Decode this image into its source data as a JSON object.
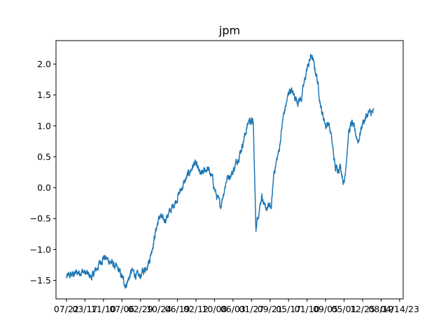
{
  "chart_data": {
    "type": "line",
    "title": "jpm",
    "xlabel": "",
    "ylabel": "",
    "ylim": [
      -1.8,
      2.38
    ],
    "yticks": [
      -1.5,
      -1.0,
      -0.5,
      0.0,
      0.5,
      1.0,
      1.5,
      2.0
    ],
    "ytick_labels": [
      "−1.5",
      "−1.0",
      "−0.5",
      "0.0",
      "0.5",
      "1.0",
      "1.5",
      "2.0"
    ],
    "xticks": [
      "2013-07-22",
      "2014-03-17",
      "2014-11-10",
      "2015-07-06",
      "2016-02-29",
      "2016-10-24",
      "2017-06-19",
      "2018-02-12",
      "2018-10-08",
      "2019-06-03",
      "2020-01-27",
      "2020-09-21",
      "2021-05-17",
      "2022-01-10",
      "2022-09-05",
      "2023-05-01",
      "2023-12-25",
      "2024-08-19",
      "2025-04-14"
    ],
    "xtick_labels": [
      "07/22",
      "03/17",
      "11/10",
      "07/06",
      "02/29",
      "10/24",
      "06/19",
      "02/12",
      "10/08",
      "06/03",
      "01/27",
      "09/21",
      "05/17",
      "01/10",
      "09/05",
      "05/01",
      "12/25",
      "08/19",
      "04/14/23"
    ],
    "xlim": [
      "2013-03-10",
      "2025-05-30"
    ],
    "grid": false,
    "series": [
      {
        "name": "",
        "color": "#1f77b4",
        "x": [
          "2013-07-22",
          "2013-10-20",
          "2014-02-05",
          "2014-06-15",
          "2014-08-20",
          "2014-11-10",
          "2015-02-10",
          "2015-05-30",
          "2015-08-24",
          "2015-11-10",
          "2016-02-11",
          "2016-05-05",
          "2016-06-28",
          "2016-09-30",
          "2016-11-10",
          "2016-12-20",
          "2017-03-10",
          "2017-06-01",
          "2017-08-15",
          "2017-11-20",
          "2018-01-26",
          "2018-04-15",
          "2018-07-10",
          "2018-09-10",
          "2018-10-25",
          "2018-12-24",
          "2019-03-15",
          "2019-05-30",
          "2019-09-10",
          "2019-12-26",
          "2020-02-18",
          "2020-03-23",
          "2020-06-08",
          "2020-07-10",
          "2020-10-10",
          "2020-11-10",
          "2021-01-15",
          "2021-03-10",
          "2021-06-01",
          "2021-09-15",
          "2021-10-30",
          "2022-01-05",
          "2022-03-07",
          "2022-05-15",
          "2022-07-14",
          "2022-09-10",
          "2022-10-15",
          "2022-11-20",
          "2023-01-10",
          "2023-03-16",
          "2023-05-01",
          "2023-06-30",
          "2023-08-10",
          "2023-10-30",
          "2023-12-25",
          "2024-03-05",
          "2024-05-15"
        ],
        "values": [
          -1.45,
          -1.4,
          -1.35,
          -1.45,
          -1.3,
          -1.12,
          -1.2,
          -1.35,
          -1.58,
          -1.35,
          -1.45,
          -1.3,
          -1.15,
          -0.6,
          -0.45,
          -0.55,
          -0.4,
          -0.2,
          0.0,
          0.25,
          0.4,
          0.2,
          0.32,
          0.15,
          -0.1,
          -0.3,
          0.15,
          0.25,
          0.6,
          1.1,
          1.05,
          -0.65,
          -0.1,
          -0.35,
          -0.3,
          0.25,
          0.6,
          1.15,
          1.6,
          1.4,
          1.45,
          1.9,
          2.15,
          1.8,
          1.25,
          1.0,
          1.05,
          0.8,
          0.3,
          0.35,
          0.05,
          0.9,
          1.05,
          0.75,
          1.05,
          1.2,
          1.22
        ]
      }
    ]
  }
}
